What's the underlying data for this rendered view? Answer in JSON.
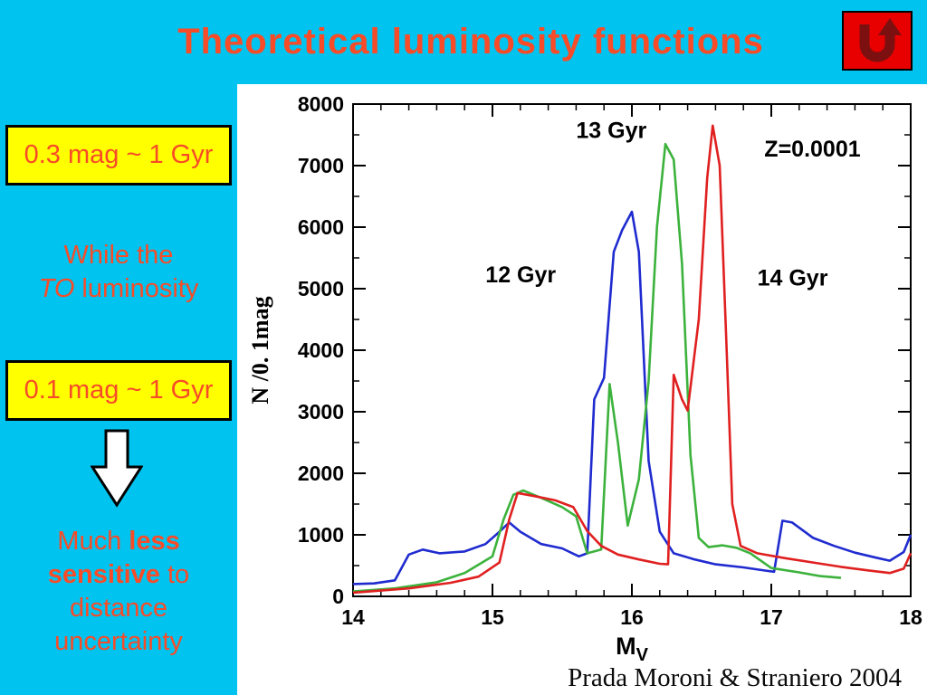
{
  "slide": {
    "title": "Theoretical luminosity functions",
    "credit": "Prada Moroni & Straniero 2004",
    "colors": {
      "background": "#00c4ef",
      "accent_text": "#f84b28",
      "callout_bg": "#ffff00",
      "panel_bg": "#ffffff",
      "return_button_bg": "#e80000",
      "return_arrow": "#7c1010"
    }
  },
  "icons": {
    "return_icon": "u-turn-arrow",
    "down_arrow_icon": "down-block-arrow"
  },
  "left_panel": {
    "box1": "0.3 mag ~ 1 Gyr",
    "while_text": {
      "line1": "While the",
      "italic": "TO",
      "rest": " luminosity"
    },
    "box2": "0.1 mag ~ 1 Gyr",
    "bottom_text": {
      "pre": "Much ",
      "bold": "less sensitive",
      "post": " to distance uncertainty"
    }
  },
  "chart_data": {
    "type": "line",
    "title": "",
    "xlabel": "M_V",
    "ylabel": "N /0. 1mag",
    "xlim": [
      14,
      18
    ],
    "ylim": [
      0,
      8000
    ],
    "xticks": [
      14,
      15,
      16,
      17,
      18
    ],
    "yticks": [
      0,
      1000,
      2000,
      3000,
      4000,
      5000,
      6000,
      7000,
      8000
    ],
    "grid": false,
    "legend": "none (inline annotations)",
    "annotations": [
      {
        "text": "13 Gyr",
        "x": 15.6,
        "y": 7450
      },
      {
        "text": "Z=0.0001",
        "x": 16.95,
        "y": 7150
      },
      {
        "text": "12 Gyr",
        "x": 14.95,
        "y": 5100
      },
      {
        "text": "14 Gyr",
        "x": 16.9,
        "y": 5050
      }
    ],
    "series": [
      {
        "name": "12 Gyr",
        "color": "#1f2bcf",
        "points": [
          [
            14.0,
            200
          ],
          [
            14.15,
            210
          ],
          [
            14.3,
            260
          ],
          [
            14.4,
            680
          ],
          [
            14.5,
            760
          ],
          [
            14.62,
            700
          ],
          [
            14.8,
            730
          ],
          [
            14.95,
            850
          ],
          [
            15.05,
            1050
          ],
          [
            15.12,
            1200
          ],
          [
            15.2,
            1050
          ],
          [
            15.35,
            850
          ],
          [
            15.5,
            780
          ],
          [
            15.62,
            650
          ],
          [
            15.68,
            700
          ],
          [
            15.73,
            3200
          ],
          [
            15.8,
            3550
          ],
          [
            15.87,
            5600
          ],
          [
            15.93,
            5950
          ],
          [
            16.0,
            6250
          ],
          [
            16.05,
            5600
          ],
          [
            16.12,
            2200
          ],
          [
            16.2,
            1050
          ],
          [
            16.3,
            700
          ],
          [
            16.45,
            600
          ],
          [
            16.6,
            520
          ],
          [
            16.8,
            470
          ],
          [
            16.95,
            420
          ],
          [
            17.02,
            400
          ],
          [
            17.08,
            1230
          ],
          [
            17.15,
            1200
          ],
          [
            17.3,
            950
          ],
          [
            17.45,
            820
          ],
          [
            17.6,
            710
          ],
          [
            17.75,
            630
          ],
          [
            17.85,
            580
          ],
          [
            17.95,
            720
          ],
          [
            18.0,
            1000
          ]
        ]
      },
      {
        "name": "13 Gyr",
        "color": "#3cb23c",
        "points": [
          [
            14.0,
            80
          ],
          [
            14.3,
            130
          ],
          [
            14.6,
            230
          ],
          [
            14.8,
            380
          ],
          [
            15.0,
            650
          ],
          [
            15.08,
            1250
          ],
          [
            15.15,
            1650
          ],
          [
            15.22,
            1720
          ],
          [
            15.35,
            1600
          ],
          [
            15.5,
            1450
          ],
          [
            15.6,
            1300
          ],
          [
            15.68,
            700
          ],
          [
            15.78,
            760
          ],
          [
            15.84,
            3450
          ],
          [
            15.9,
            2500
          ],
          [
            15.97,
            1150
          ],
          [
            16.05,
            1900
          ],
          [
            16.12,
            3500
          ],
          [
            16.18,
            6000
          ],
          [
            16.24,
            7350
          ],
          [
            16.3,
            7100
          ],
          [
            16.36,
            5400
          ],
          [
            16.42,
            2300
          ],
          [
            16.48,
            950
          ],
          [
            16.55,
            800
          ],
          [
            16.65,
            830
          ],
          [
            16.75,
            790
          ],
          [
            16.85,
            700
          ],
          [
            17.0,
            460
          ],
          [
            17.2,
            390
          ],
          [
            17.35,
            330
          ],
          [
            17.5,
            300
          ]
        ]
      },
      {
        "name": "14 Gyr",
        "color": "#e02020",
        "points": [
          [
            14.0,
            60
          ],
          [
            14.4,
            130
          ],
          [
            14.7,
            220
          ],
          [
            14.9,
            320
          ],
          [
            15.05,
            550
          ],
          [
            15.12,
            1250
          ],
          [
            15.18,
            1680
          ],
          [
            15.3,
            1630
          ],
          [
            15.45,
            1560
          ],
          [
            15.58,
            1450
          ],
          [
            15.68,
            1060
          ],
          [
            15.78,
            820
          ],
          [
            15.9,
            680
          ],
          [
            16.05,
            600
          ],
          [
            16.2,
            530
          ],
          [
            16.26,
            520
          ],
          [
            16.3,
            3600
          ],
          [
            16.36,
            3200
          ],
          [
            16.4,
            3020
          ],
          [
            16.48,
            4500
          ],
          [
            16.54,
            6800
          ],
          [
            16.58,
            7650
          ],
          [
            16.63,
            7000
          ],
          [
            16.68,
            4000
          ],
          [
            16.72,
            1500
          ],
          [
            16.78,
            820
          ],
          [
            16.9,
            700
          ],
          [
            17.1,
            620
          ],
          [
            17.3,
            550
          ],
          [
            17.5,
            480
          ],
          [
            17.7,
            420
          ],
          [
            17.85,
            380
          ],
          [
            17.95,
            450
          ],
          [
            18.0,
            700
          ]
        ]
      }
    ]
  }
}
